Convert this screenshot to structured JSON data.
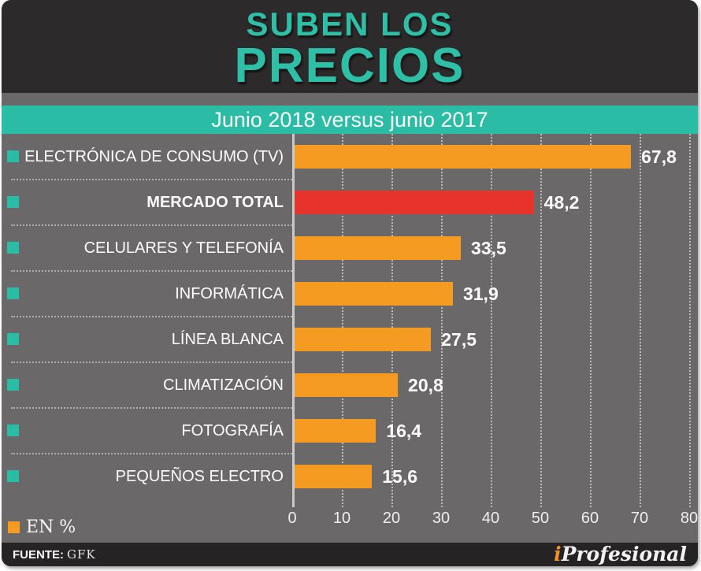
{
  "header": {
    "title_line1": "SUBEN LOS",
    "title_line2": "PRECIOS"
  },
  "banner": {
    "text": "Junio 2018 versus junio 2017"
  },
  "chart_data": {
    "type": "bar",
    "orientation": "horizontal",
    "title": "SUBEN LOS PRECIOS",
    "subtitle": "Junio 2018 versus junio 2017",
    "categories": [
      "ELECTRÓNICA DE CONSUMO (TV)",
      "MERCADO TOTAL",
      "CELULARES Y TELEFONÍA",
      "INFORMÁTICA",
      "LÍNEA BLANCA",
      "CLIMATIZACIÓN",
      "FOTOGRAFÍA",
      "PEQUEÑOS ELECTRO"
    ],
    "values": [
      67.8,
      48.2,
      33.5,
      31.9,
      27.5,
      20.8,
      16.4,
      15.6
    ],
    "value_labels": [
      "67,8",
      "48,2",
      "33,5",
      "31,9",
      "27,5",
      "20,8",
      "16,4",
      "15,6"
    ],
    "highlight_index": 1,
    "xlim": [
      0,
      80
    ],
    "x_ticks": [
      "0",
      "10",
      "20",
      "30",
      "40",
      "50",
      "60",
      "70",
      "80"
    ],
    "legend_label": "EN %",
    "grid": true,
    "legend_position": "bottom-left",
    "colors": {
      "bar": "#f59b22",
      "highlight_bar": "#e8332c",
      "bullet": "#2abca4",
      "banner": "#2abca4",
      "title": "#2ebfa7",
      "plot_background": "#6a6868",
      "frame_background": "#2d2a2b"
    }
  },
  "footer": {
    "source_label": "FUENTE:",
    "source_value": "GFK",
    "logo_i": "i",
    "logo_rest": "Profesional"
  }
}
